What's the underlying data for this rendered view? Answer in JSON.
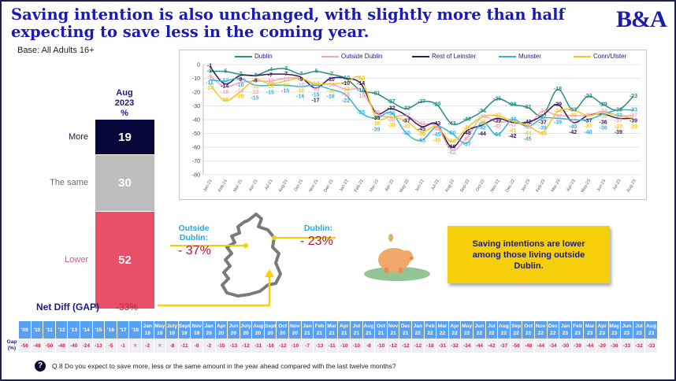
{
  "header": {
    "title": "Saving intention is also unchanged, with slightly more than half expecting to save less in the coming year.",
    "base": "Base: All Adults 16+",
    "logo": "B&A"
  },
  "stacked": {
    "col_month": "Aug",
    "col_year": "2023",
    "col_unit": "%",
    "segments": [
      {
        "label": "More",
        "value": 19,
        "color": "#06063a",
        "label_color": "#1a1a3a"
      },
      {
        "label": "The same",
        "value": 30,
        "color": "#bdbdbd",
        "label_color": "#6a6a6a"
      },
      {
        "label": "Lower",
        "value": 52,
        "color": "#e85068",
        "label_color": "#e85068"
      }
    ],
    "net_label": "Net Diff (GAP)",
    "net_value": "-33%"
  },
  "callouts": {
    "outside_label": "Outside Dublin:",
    "outside_value": "- 37%",
    "dublin_label": "Dublin:",
    "dublin_value": "- 23%",
    "box_text": "Saving intentions are lower among those living outside Dublin."
  },
  "chart_data": {
    "type": "line",
    "title": "",
    "xlabel": "",
    "ylabel": "",
    "ylim": [
      -80,
      0
    ],
    "yticks": [
      0,
      -10,
      -20,
      -30,
      -40,
      -50,
      -60,
      -70,
      -80
    ],
    "grid": true,
    "legend_position": "top",
    "x": [
      "Jan-21",
      "Feb-21",
      "Mar-21",
      "Apr-21",
      "Jul-21",
      "Aug-21",
      "Oct-21",
      "Nov-21",
      "Dec-21",
      "Jan-22",
      "Feb-22",
      "Mar-22",
      "Apr-22",
      "May-22",
      "Jun-22",
      "Jul-22",
      "Aug-22",
      "Sep-22",
      "Oct-22",
      "Nov-22",
      "Dec-22",
      "Jan-23",
      "Feb-23",
      "Mar-23",
      "Apr-23",
      "May-23",
      "Jun-23",
      "Jul-23",
      "Aug-23"
    ],
    "series": [
      {
        "name": "Dublin",
        "color": "#2a8c84",
        "values": [
          -5,
          -5,
          -7,
          -8,
          -4,
          -3,
          -7,
          -5,
          -7,
          -10,
          -19,
          -21,
          -27,
          -32,
          -27,
          -29,
          -43,
          -40,
          -34,
          -25,
          -29,
          -31,
          -37,
          -18,
          -33,
          -23,
          -29,
          -33,
          -23
        ]
      },
      {
        "name": "Outside Dublin",
        "color": "#f0a8b8",
        "values": [
          -8,
          -16,
          -13,
          -12,
          -12,
          -10,
          -10,
          -15,
          -14,
          -18,
          -19,
          -35,
          -38,
          -37,
          -43,
          -45,
          -62,
          -53,
          -38,
          -42,
          -41,
          -44,
          -34,
          -37,
          -37,
          -37,
          -34,
          -37,
          -37
        ]
      },
      {
        "name": "Rest of Leinster",
        "color": "#3a1a5a",
        "values": [
          -1,
          -14,
          -8,
          -8,
          -7,
          -7,
          -9,
          -17,
          -10,
          -10,
          -14,
          -35,
          -32,
          -37,
          -45,
          -43,
          -60,
          -48,
          -44,
          -39,
          -42,
          -42,
          -37,
          -29,
          -42,
          -37,
          -36,
          -39,
          -39
        ]
      },
      {
        "name": "Munster",
        "color": "#38b0d8",
        "values": [
          -11,
          -12,
          -10,
          -15,
          -15,
          -15,
          -16,
          -15,
          -18,
          -22,
          -35,
          -39,
          -35,
          -50,
          -55,
          -45,
          -50,
          -57,
          -42,
          -51,
          -40,
          -45,
          -39,
          -39,
          -40,
          -40,
          -36,
          -33,
          -33
        ]
      },
      {
        "name": "Conn/Ulster",
        "color": "#f6c81e",
        "values": [
          -14,
          -26,
          -20,
          -11,
          -14,
          -12,
          -10,
          -14,
          -14,
          -13,
          -10,
          -38,
          -38,
          -41,
          -49,
          -45,
          -56,
          -46,
          -38,
          -37,
          -41,
          -44,
          -49,
          -34,
          -33,
          -37,
          -35,
          -37,
          -39
        ]
      }
    ]
  },
  "gap_table": {
    "row_label": "Gap (%)",
    "columns": [
      {
        "h1": "'09",
        "h2": "",
        "v": "-56"
      },
      {
        "h1": "'10",
        "h2": "",
        "v": "-48"
      },
      {
        "h1": "'11",
        "h2": "",
        "v": "-50"
      },
      {
        "h1": "'12",
        "h2": "",
        "v": "-48"
      },
      {
        "h1": "'13",
        "h2": "",
        "v": "-40"
      },
      {
        "h1": "'14",
        "h2": "",
        "v": "-24"
      },
      {
        "h1": "'15",
        "h2": "",
        "v": "-13"
      },
      {
        "h1": "'16",
        "h2": "",
        "v": "-5"
      },
      {
        "h1": "'17",
        "h2": "",
        "v": "-1"
      },
      {
        "h1": "'18",
        "h2": "",
        "v": "="
      },
      {
        "h1": "Jan",
        "h2": "19",
        "v": "-2"
      },
      {
        "h1": "May",
        "h2": "19",
        "v": "="
      },
      {
        "h1": "July",
        "h2": "19",
        "v": "-8"
      },
      {
        "h1": "Sept",
        "h2": "19",
        "v": "-11"
      },
      {
        "h1": "Nov",
        "h2": "19",
        "v": "-8"
      },
      {
        "h1": "Jan",
        "h2": "20",
        "v": "-2"
      },
      {
        "h1": "Apr",
        "h2": "20",
        "v": "-15"
      },
      {
        "h1": "Jun",
        "h2": "20",
        "v": "-13"
      },
      {
        "h1": "July",
        "h2": "20",
        "v": "-12"
      },
      {
        "h1": "Aug",
        "h2": "20",
        "v": "-11"
      },
      {
        "h1": "Sept",
        "h2": "20",
        "v": "-16"
      },
      {
        "h1": "Oct",
        "h2": "20",
        "v": "-12"
      },
      {
        "h1": "Nov",
        "h2": "20",
        "v": "-10"
      },
      {
        "h1": "Jan",
        "h2": "21",
        "v": "-7"
      },
      {
        "h1": "Feb",
        "h2": "21",
        "v": "-13"
      },
      {
        "h1": "Mar",
        "h2": "21",
        "v": "-11"
      },
      {
        "h1": "Apr",
        "h2": "21",
        "v": "-10"
      },
      {
        "h1": "Jul",
        "h2": "21",
        "v": "-10"
      },
      {
        "h1": "Aug",
        "h2": "21",
        "v": "-8"
      },
      {
        "h1": "Oct",
        "h2": "21",
        "v": "-10"
      },
      {
        "h1": "Nov",
        "h2": "21",
        "v": "-12"
      },
      {
        "h1": "Dec",
        "h2": "21",
        "v": "-12"
      },
      {
        "h1": "Jan",
        "h2": "22",
        "v": "-12"
      },
      {
        "h1": "Feb",
        "h2": "22",
        "v": "-18"
      },
      {
        "h1": "Mar",
        "h2": "22",
        "v": "-31"
      },
      {
        "h1": "Apr",
        "h2": "22",
        "v": "-32"
      },
      {
        "h1": "May",
        "h2": "22",
        "v": "-34"
      },
      {
        "h1": "Jun",
        "h2": "22",
        "v": "-44"
      },
      {
        "h1": "Jul",
        "h2": "22",
        "v": "-42"
      },
      {
        "h1": "Aug",
        "h2": "22",
        "v": "-37"
      },
      {
        "h1": "Sep",
        "h2": "22",
        "v": "-56"
      },
      {
        "h1": "Oct",
        "h2": "22",
        "v": "-48"
      },
      {
        "h1": "Nov",
        "h2": "22",
        "v": "-44"
      },
      {
        "h1": "Dec",
        "h2": "22",
        "v": "-34"
      },
      {
        "h1": "Jan",
        "h2": "23",
        "v": "-30"
      },
      {
        "h1": "Feb",
        "h2": "23",
        "v": "-39"
      },
      {
        "h1": "Mar",
        "h2": "23",
        "v": "-44"
      },
      {
        "h1": "Apr",
        "h2": "23",
        "v": "-29"
      },
      {
        "h1": "May",
        "h2": "23",
        "v": "-36"
      },
      {
        "h1": "Jun",
        "h2": "23",
        "v": "-33"
      },
      {
        "h1": "Jul",
        "h2": "23",
        "v": "-32"
      },
      {
        "h1": "Aug",
        "h2": "23",
        "v": "-33"
      }
    ]
  },
  "footer": {
    "question_icon": "question-icon",
    "question": "Q.8 Do you expect to save more, less or the same amount in the year ahead compared with the last twelve months?"
  }
}
